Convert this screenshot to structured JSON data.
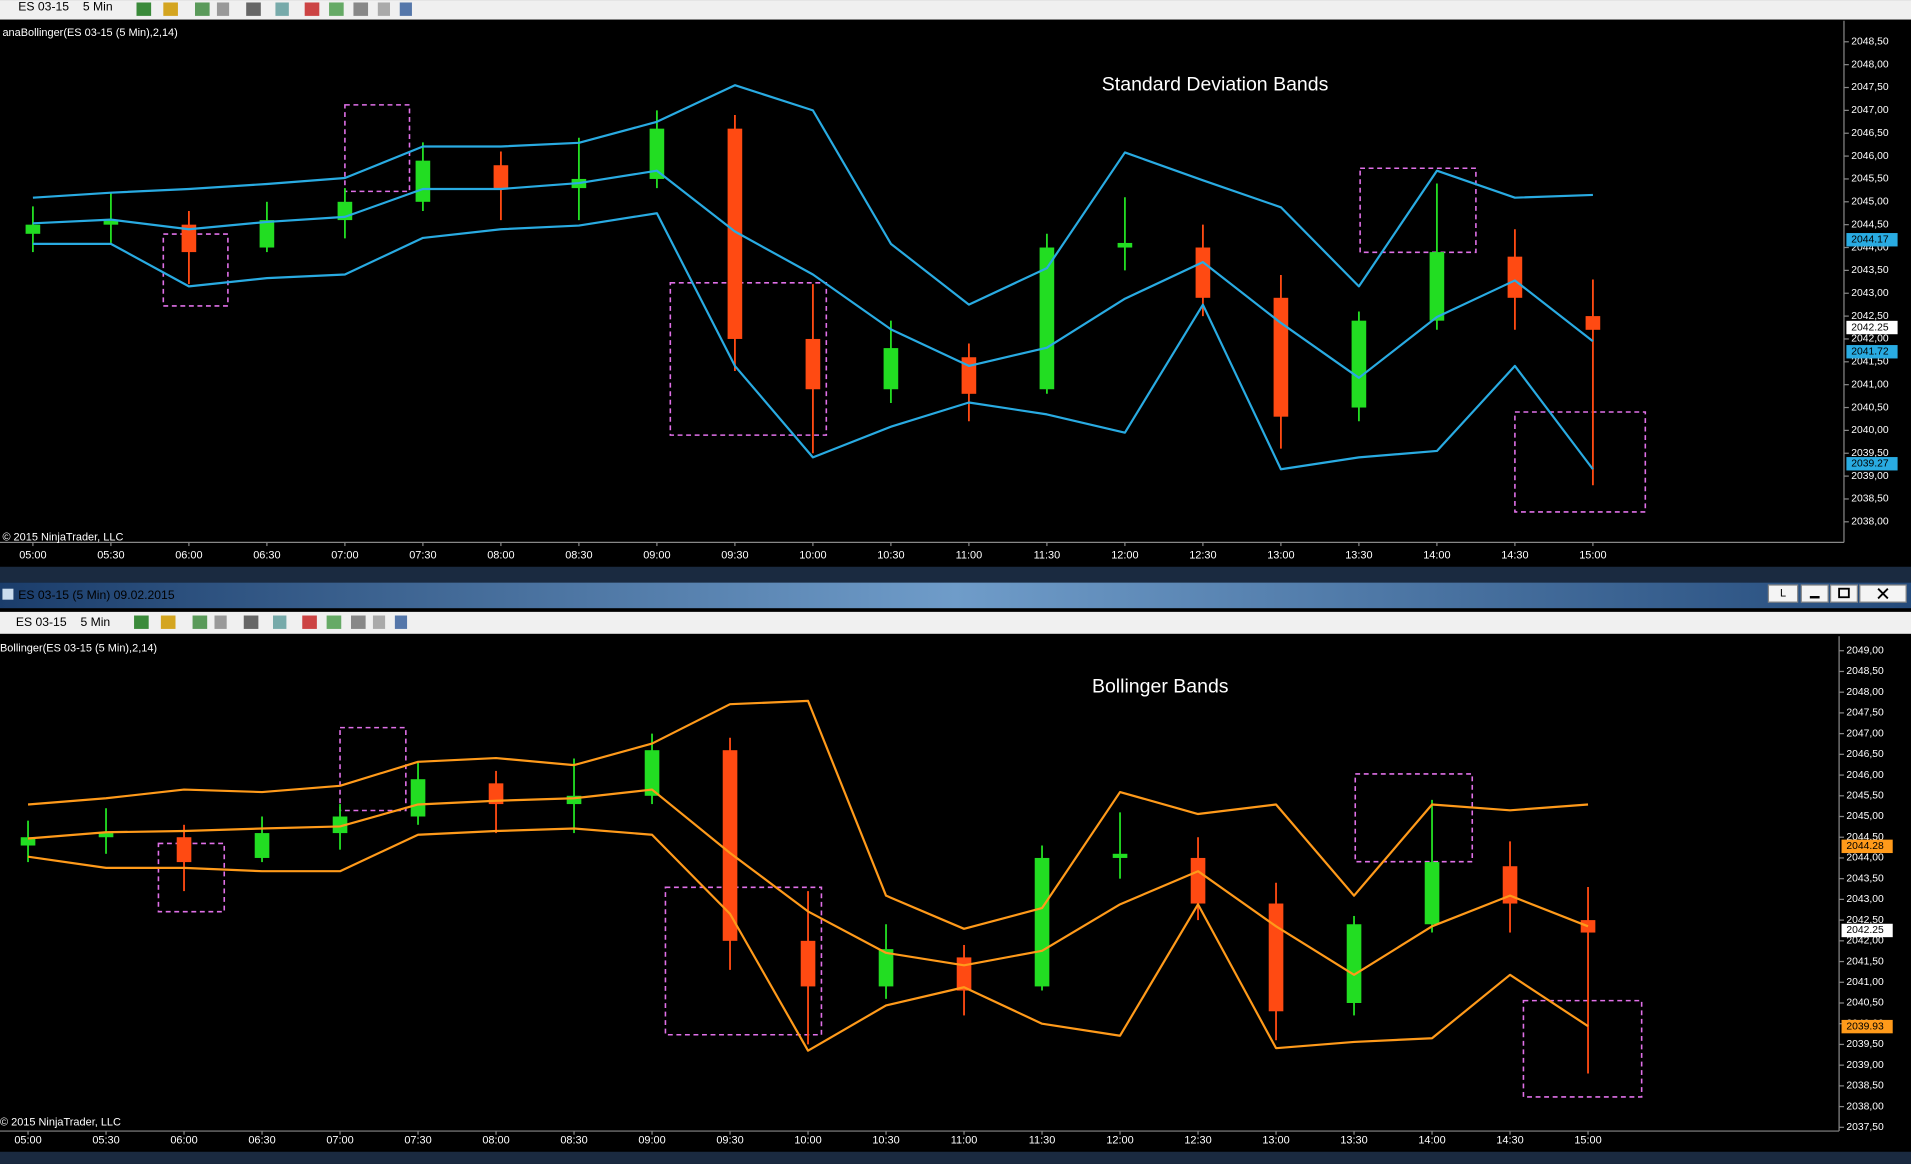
{
  "window": {
    "title": "ES 03-15 (5 Min)  09.02.2015",
    "restore_button": "L"
  },
  "toolbars": [
    {
      "instrument": "ES 03-15",
      "interval": "5 Min"
    },
    {
      "instrument": "ES 03-15",
      "interval": "5 Min"
    }
  ],
  "chart_data": [
    {
      "type": "candlestick",
      "title": "Standard Deviation Bands",
      "indicator_label": "anaBollinger(ES 03-15 (5 Min),2,14)",
      "copyright": "© 2015 NinjaTrader, LLC",
      "categories": [
        "05:00",
        "05:30",
        "06:00",
        "06:30",
        "07:00",
        "07:30",
        "08:00",
        "08:30",
        "09:00",
        "09:30",
        "10:00",
        "10:30",
        "11:00",
        "11:30",
        "12:00",
        "12:30",
        "13:00",
        "13:30",
        "14:00",
        "14:30",
        "15:00"
      ],
      "open": [
        2044.3,
        2044.5,
        2044.5,
        2044.0,
        2044.6,
        2045.0,
        2045.8,
        2045.3,
        2045.5,
        2046.6,
        2042.0,
        2040.9,
        2041.6,
        2040.9,
        2044.0,
        2044.0,
        2042.9,
        2040.5,
        2042.4,
        2043.8,
        2042.5
      ],
      "high": [
        2044.9,
        2045.2,
        2044.8,
        2045.0,
        2045.3,
        2046.3,
        2046.1,
        2046.4,
        2047.0,
        2046.9,
        2043.2,
        2042.4,
        2041.9,
        2044.3,
        2045.1,
        2044.5,
        2043.4,
        2042.6,
        2045.4,
        2044.4,
        2043.3
      ],
      "low": [
        2043.9,
        2044.1,
        2043.2,
        2043.9,
        2044.2,
        2044.8,
        2044.6,
        2044.6,
        2045.3,
        2041.3,
        2039.5,
        2040.6,
        2040.2,
        2040.8,
        2043.5,
        2042.5,
        2039.6,
        2040.2,
        2042.2,
        2042.2,
        2038.8
      ],
      "close": [
        2044.5,
        2044.6,
        2043.9,
        2044.6,
        2045.0,
        2045.9,
        2045.3,
        2045.5,
        2046.6,
        2042.0,
        2040.9,
        2041.8,
        2040.8,
        2044.0,
        2044.1,
        2042.9,
        2040.3,
        2042.4,
        2043.9,
        2042.9,
        2042.2
      ],
      "up_color": "#22dd22",
      "down_color": "#ff4a12",
      "series": [
        {
          "color": "#29abe2",
          "values": [
            2045.09,
            2045.2,
            2045.28,
            2045.39,
            2045.52,
            2046.21,
            2046.21,
            2046.29,
            2046.75,
            2047.55,
            2047.0,
            2044.08,
            2042.75,
            2043.55,
            2046.08,
            2045.47,
            2044.88,
            2043.15,
            2045.68,
            2045.09,
            2045.15
          ]
        },
        {
          "color": "#29abe2",
          "values": [
            2044.53,
            2044.61,
            2044.4,
            2044.56,
            2044.67,
            2045.28,
            2045.28,
            2045.41,
            2045.68,
            2044.35,
            2043.41,
            2042.21,
            2041.41,
            2041.81,
            2042.88,
            2043.68,
            2042.35,
            2041.15,
            2042.48,
            2043.28,
            2041.95
          ]
        },
        {
          "color": "#29abe2",
          "values": [
            2044.08,
            2044.08,
            2043.15,
            2043.33,
            2043.41,
            2044.21,
            2044.4,
            2044.48,
            2044.75,
            2041.41,
            2039.41,
            2040.08,
            2040.61,
            2040.35,
            2039.95,
            2042.75,
            2039.15,
            2039.41,
            2039.55,
            2041.41,
            2039.15
          ]
        }
      ],
      "price_markers": [
        {
          "value": 2044.17,
          "color": "#29abe2"
        },
        {
          "value": 2042.25,
          "color": "#ffffff"
        },
        {
          "value": 2041.72,
          "color": "#29abe2"
        },
        {
          "value": 2039.27,
          "color": "#29abe2"
        }
      ],
      "ylim": [
        2037.55,
        2048.96
      ],
      "yticks": [
        {
          "value": 2038,
          "label": "2038,00"
        },
        {
          "value": 2038.5,
          "label": "2038,50"
        },
        {
          "value": 2039,
          "label": "2039,00"
        },
        {
          "value": 2039.5,
          "label": "2039,50"
        },
        {
          "value": 2040,
          "label": "2040,00"
        },
        {
          "value": 2040.5,
          "label": "2040,50"
        },
        {
          "value": 2041,
          "label": "2041,00"
        },
        {
          "value": 2041.5,
          "label": "2041,50"
        },
        {
          "value": 2042,
          "label": "2042,00"
        },
        {
          "value": 2042.5,
          "label": "2042,50"
        },
        {
          "value": 2043,
          "label": "2043,00"
        },
        {
          "value": 2043.5,
          "label": "2043,50"
        },
        {
          "value": 2044,
          "label": "2044,00"
        },
        {
          "value": 2044.5,
          "label": "2044,50"
        },
        {
          "value": 2045,
          "label": "2045,00"
        },
        {
          "value": 2045.5,
          "label": "2045,50"
        },
        {
          "value": 2046,
          "label": "2046,00"
        },
        {
          "value": 2046.5,
          "label": "2046,50"
        },
        {
          "value": 2047,
          "label": "2047,00"
        },
        {
          "value": 2047.5,
          "label": "2047,50"
        },
        {
          "value": 2048,
          "label": "2048,00"
        },
        {
          "value": 2048.5,
          "label": "2048,50"
        }
      ]
    },
    {
      "type": "candlestick",
      "title": "Bollinger Bands",
      "indicator_label": "Bollinger(ES 03-15 (5 Min),2,14)",
      "copyright": "© 2015 NinjaTrader, LLC",
      "categories": [
        "05:00",
        "05:30",
        "06:00",
        "06:30",
        "07:00",
        "07:30",
        "08:00",
        "08:30",
        "09:00",
        "09:30",
        "10:00",
        "10:30",
        "11:00",
        "11:30",
        "12:00",
        "12:30",
        "13:00",
        "13:30",
        "14:00",
        "14:30",
        "15:00"
      ],
      "open": [
        2044.3,
        2044.5,
        2044.5,
        2044.0,
        2044.6,
        2045.0,
        2045.8,
        2045.3,
        2045.5,
        2046.6,
        2042.0,
        2040.9,
        2041.6,
        2040.9,
        2044.0,
        2044.0,
        2042.9,
        2040.5,
        2042.4,
        2043.8,
        2042.5
      ],
      "high": [
        2044.9,
        2045.2,
        2044.8,
        2045.0,
        2045.3,
        2046.3,
        2046.1,
        2046.4,
        2047.0,
        2046.9,
        2043.2,
        2042.4,
        2041.9,
        2044.3,
        2045.1,
        2044.5,
        2043.4,
        2042.6,
        2045.4,
        2044.4,
        2043.3
      ],
      "low": [
        2043.9,
        2044.1,
        2043.2,
        2043.9,
        2044.2,
        2044.8,
        2044.6,
        2044.6,
        2045.3,
        2041.3,
        2039.5,
        2040.6,
        2040.2,
        2040.8,
        2043.5,
        2042.5,
        2039.6,
        2040.2,
        2042.2,
        2042.2,
        2038.8
      ],
      "close": [
        2044.5,
        2044.6,
        2043.9,
        2044.6,
        2045.0,
        2045.9,
        2045.3,
        2045.5,
        2046.6,
        2042.0,
        2040.9,
        2041.8,
        2040.8,
        2044.0,
        2044.1,
        2042.9,
        2040.3,
        2042.4,
        2043.9,
        2042.9,
        2042.2
      ],
      "up_color": "#22dd22",
      "down_color": "#ff4a12",
      "series": [
        {
          "color": "#ff9a1a",
          "values": [
            2045.29,
            2045.44,
            2045.65,
            2045.59,
            2045.74,
            2046.32,
            2046.41,
            2046.24,
            2046.76,
            2047.71,
            2047.79,
            2043.09,
            2042.29,
            2042.79,
            2045.59,
            2045.06,
            2045.29,
            2043.09,
            2045.29,
            2045.15,
            2045.29
          ]
        },
        {
          "color": "#ff9a1a",
          "values": [
            2044.47,
            2044.62,
            2044.65,
            2044.71,
            2044.76,
            2045.29,
            2045.38,
            2045.44,
            2045.65,
            2044.12,
            2042.71,
            2041.71,
            2041.41,
            2041.76,
            2042.88,
            2043.68,
            2042.35,
            2041.18,
            2042.35,
            2043.09,
            2042.35
          ]
        },
        {
          "color": "#ff9a1a",
          "values": [
            2044.03,
            2043.76,
            2043.76,
            2043.68,
            2043.68,
            2044.56,
            2044.65,
            2044.71,
            2044.56,
            2042.65,
            2039.35,
            2040.44,
            2040.88,
            2040.0,
            2039.71,
            2042.88,
            2039.41,
            2039.56,
            2039.65,
            2041.18,
            2039.94
          ]
        }
      ],
      "price_markers": [
        {
          "value": 2044.28,
          "color": "#ff9a1a"
        },
        {
          "value": 2042.25,
          "color": "#ffffff"
        },
        {
          "value": 2039.93,
          "color": "#ff9a1a"
        }
      ],
      "ylim": [
        2037.41,
        2049.35
      ],
      "yticks": [
        {
          "value": 2037.5,
          "label": "2037,50"
        },
        {
          "value": 2038,
          "label": "2038,00"
        },
        {
          "value": 2038.5,
          "label": "2038,50"
        },
        {
          "value": 2039,
          "label": "2039,00"
        },
        {
          "value": 2039.5,
          "label": "2039,50"
        },
        {
          "value": 2040,
          "label": "2040,00"
        },
        {
          "value": 2040.5,
          "label": "2040,50"
        },
        {
          "value": 2041,
          "label": "2041,00"
        },
        {
          "value": 2041.5,
          "label": "2041,50"
        },
        {
          "value": 2042,
          "label": "2042,00"
        },
        {
          "value": 2042.5,
          "label": "2042,50"
        },
        {
          "value": 2043,
          "label": "2043,00"
        },
        {
          "value": 2043.5,
          "label": "2043,50"
        },
        {
          "value": 2044,
          "label": "2044,00"
        },
        {
          "value": 2044.5,
          "label": "2044,50"
        },
        {
          "value": 2045,
          "label": "2045,00"
        },
        {
          "value": 2045.5,
          "label": "2045,50"
        },
        {
          "value": 2046,
          "label": "2046,00"
        },
        {
          "value": 2046.5,
          "label": "2046,50"
        },
        {
          "value": 2047,
          "label": "2047,00"
        },
        {
          "value": 2047.5,
          "label": "2047,50"
        },
        {
          "value": 2048,
          "label": "2048,00"
        },
        {
          "value": 2048.5,
          "label": "2048,50"
        },
        {
          "value": 2049,
          "label": "2049,00"
        }
      ]
    }
  ]
}
